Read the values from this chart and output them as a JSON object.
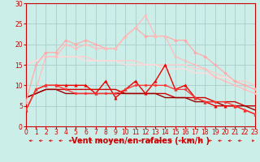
{
  "bg_color": "#cceee8",
  "grid_color": "#aacccc",
  "xlabel": "Vent moyen/en rafales ( km/h )",
  "xlabel_color": "#cc0000",
  "xlabel_fontsize": 7,
  "tick_color": "#cc0000",
  "tick_fontsize": 5.5,
  "ylim": [
    0,
    30
  ],
  "xlim": [
    0,
    23
  ],
  "yticks": [
    0,
    5,
    10,
    15,
    20,
    25,
    30
  ],
  "xticks": [
    0,
    1,
    2,
    3,
    4,
    5,
    6,
    7,
    8,
    9,
    10,
    11,
    12,
    13,
    14,
    15,
    16,
    17,
    18,
    19,
    20,
    21,
    22,
    23
  ],
  "lines": [
    {
      "y": [
        6,
        15,
        18,
        18,
        21,
        20,
        21,
        20,
        19,
        19,
        22,
        24,
        22,
        22,
        22,
        21,
        21,
        18,
        17,
        15,
        13,
        11,
        10,
        9
      ],
      "color": "#ffaaaa",
      "lw": 0.9,
      "marker": "D",
      "ms": 2.0
    },
    {
      "y": [
        4,
        9,
        17,
        17,
        20,
        19,
        20,
        19,
        19,
        19,
        22,
        24,
        27,
        22,
        22,
        17,
        16,
        15,
        14,
        12,
        11,
        10,
        9,
        8
      ],
      "color": "#ffbbbb",
      "lw": 0.9,
      "marker": "o",
      "ms": 2.0
    },
    {
      "y": [
        15,
        16,
        17,
        17,
        17,
        17,
        17,
        16,
        16,
        16,
        16,
        16,
        15,
        15,
        15,
        15,
        15,
        14,
        14,
        13,
        12,
        11,
        11,
        10
      ],
      "color": "#ffcccc",
      "lw": 1.0,
      "marker": null,
      "ms": 0
    },
    {
      "y": [
        15,
        16,
        17,
        17,
        17,
        17,
        16,
        16,
        16,
        16,
        15,
        15,
        15,
        15,
        14,
        14,
        14,
        13,
        13,
        12,
        12,
        11,
        10,
        9
      ],
      "color": "#ffdddd",
      "lw": 1.0,
      "marker": null,
      "ms": 0
    },
    {
      "y": [
        4,
        9,
        10,
        10,
        10,
        10,
        10,
        8,
        11,
        7,
        9,
        11,
        8,
        11,
        15,
        9,
        10,
        7,
        6,
        5,
        5,
        5,
        4,
        3
      ],
      "color": "#ee0000",
      "lw": 1.0,
      "marker": "^",
      "ms": 2.5
    },
    {
      "y": [
        4,
        9,
        10,
        10,
        9,
        8,
        8,
        8,
        8,
        8,
        9,
        10,
        10,
        10,
        10,
        9,
        9,
        7,
        6,
        6,
        6,
        5,
        4,
        3
      ],
      "color": "#ff3333",
      "lw": 0.9,
      "marker": "o",
      "ms": 2.0
    },
    {
      "y": [
        7,
        8,
        9,
        9,
        9,
        9,
        9,
        9,
        9,
        9,
        8,
        8,
        8,
        8,
        8,
        7,
        7,
        7,
        7,
        6,
        6,
        6,
        5,
        5
      ],
      "color": "#cc0000",
      "lw": 1.0,
      "marker": null,
      "ms": 0
    },
    {
      "y": [
        7,
        8,
        9,
        9,
        8,
        8,
        8,
        8,
        8,
        8,
        8,
        8,
        8,
        8,
        7,
        7,
        7,
        6,
        6,
        6,
        5,
        5,
        5,
        4
      ],
      "color": "#990000",
      "lw": 1.0,
      "marker": null,
      "ms": 0
    }
  ],
  "arrow_color": "#cc0000"
}
